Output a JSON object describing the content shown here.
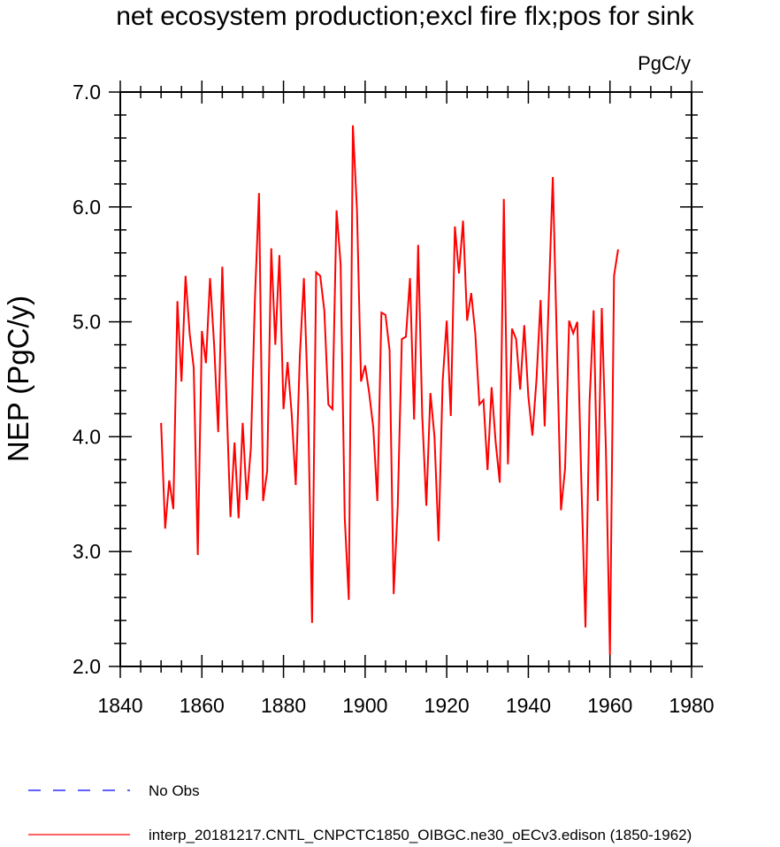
{
  "chart_data": {
    "type": "line",
    "title": "net ecosystem production;excl fire flx;pos for sink",
    "units": "PgC/y",
    "ylabel": "NEP  (PgC/y)",
    "xlabel": "",
    "xlim": [
      1840,
      1980
    ],
    "ylim": [
      2.0,
      7.0
    ],
    "xticks": [
      1840,
      1860,
      1880,
      1900,
      1920,
      1940,
      1960,
      1980
    ],
    "xtick_labels": [
      "1840",
      "1860",
      "1880",
      "1900",
      "1920",
      "1940",
      "1960",
      "1980"
    ],
    "yticks": [
      2.0,
      3.0,
      4.0,
      5.0,
      6.0,
      7.0
    ],
    "ytick_labels": [
      "2.0",
      "3.0",
      "4.0",
      "5.0",
      "6.0",
      "7.0"
    ],
    "grid": false,
    "legend_position": "bottom",
    "series": [
      {
        "name": "interp_20181217.CNTL_CNPCTC1850_OIBGC.ne30_oECv3.edison (1850-1962)",
        "color": "#ff0000",
        "dash": "solid",
        "x": [
          1850,
          1851,
          1852,
          1853,
          1854,
          1855,
          1856,
          1857,
          1858,
          1859,
          1860,
          1861,
          1862,
          1863,
          1864,
          1865,
          1866,
          1867,
          1868,
          1869,
          1870,
          1871,
          1872,
          1873,
          1874,
          1875,
          1876,
          1877,
          1878,
          1879,
          1880,
          1881,
          1882,
          1883,
          1884,
          1885,
          1886,
          1887,
          1888,
          1889,
          1890,
          1891,
          1892,
          1893,
          1894,
          1895,
          1896,
          1897,
          1898,
          1899,
          1900,
          1901,
          1902,
          1903,
          1904,
          1905,
          1906,
          1907,
          1908,
          1909,
          1910,
          1911,
          1912,
          1913,
          1914,
          1915,
          1916,
          1917,
          1918,
          1919,
          1920,
          1921,
          1922,
          1923,
          1924,
          1925,
          1926,
          1927,
          1928,
          1929,
          1930,
          1931,
          1932,
          1933,
          1934,
          1935,
          1936,
          1937,
          1938,
          1939,
          1940,
          1941,
          1942,
          1943,
          1944,
          1945,
          1946,
          1947,
          1948,
          1949,
          1950,
          1951,
          1952,
          1953,
          1954,
          1955,
          1956,
          1957,
          1958,
          1959,
          1960,
          1961,
          1962
        ],
        "values": [
          4.12,
          3.2,
          3.62,
          3.37,
          5.18,
          4.48,
          5.4,
          4.9,
          4.6,
          2.97,
          4.92,
          4.64,
          5.38,
          4.8,
          4.04,
          5.48,
          4.35,
          3.3,
          3.95,
          3.29,
          4.12,
          3.45,
          3.9,
          5.2,
          6.12,
          3.44,
          3.7,
          5.64,
          4.8,
          5.58,
          4.24,
          4.65,
          4.2,
          3.58,
          4.7,
          5.38,
          4.3,
          2.38,
          5.43,
          5.4,
          5.1,
          4.28,
          4.24,
          5.97,
          5.5,
          3.3,
          2.58,
          6.71,
          5.98,
          4.48,
          4.62,
          4.38,
          4.08,
          3.44,
          5.08,
          5.06,
          4.75,
          2.63,
          3.4,
          4.85,
          4.87,
          5.38,
          4.15,
          5.67,
          4.18,
          3.4,
          4.38,
          4.0,
          3.09,
          4.48,
          5.01,
          4.18,
          5.83,
          5.42,
          5.88,
          5.01,
          5.25,
          4.9,
          4.28,
          4.32,
          3.71,
          4.43,
          3.95,
          3.6,
          6.07,
          3.76,
          4.94,
          4.85,
          4.41,
          4.97,
          4.35,
          4.01,
          4.5,
          5.19,
          4.09,
          5.2,
          6.26,
          4.8,
          3.36,
          3.72,
          5.01,
          4.9,
          5.0,
          3.6,
          2.34,
          4.3,
          5.1,
          3.44,
          5.12,
          3.9,
          2.1,
          5.4,
          5.63
        ]
      },
      {
        "name": "No Obs",
        "color": "#0000ff",
        "dash": "dashed",
        "x": [],
        "values": []
      }
    ]
  }
}
